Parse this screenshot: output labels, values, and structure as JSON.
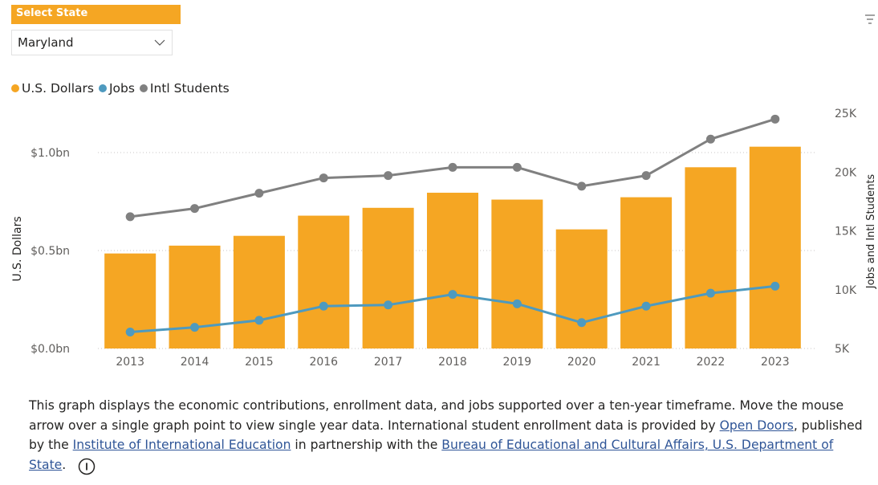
{
  "filter": {
    "header": "Select State",
    "selected": "Maryland"
  },
  "icons": {
    "dropdown": "chevron-down-icon",
    "filter": "filter-lines-icon",
    "info": "info-circle-icon"
  },
  "colors": {
    "accent": "#F5A623",
    "usd": "#F5A623",
    "jobs": "#4E9ABF",
    "students": "#808080",
    "link": "#2f5597"
  },
  "chart_data": {
    "type": "bar",
    "categories": [
      "2013",
      "2014",
      "2015",
      "2016",
      "2017",
      "2018",
      "2019",
      "2020",
      "2021",
      "2022",
      "2023"
    ],
    "series": [
      {
        "name": "U.S. Dollars",
        "type": "bar",
        "axis": "left",
        "values": [
          0.485,
          0.525,
          0.575,
          0.678,
          0.718,
          0.795,
          0.76,
          0.608,
          0.772,
          0.925,
          1.03
        ]
      },
      {
        "name": "Jobs",
        "type": "line",
        "axis": "right",
        "values": [
          6400,
          6800,
          7400,
          8600,
          8700,
          9600,
          8800,
          7200,
          8600,
          9700,
          10300
        ]
      },
      {
        "name": "Intl Students",
        "type": "line",
        "axis": "right",
        "values": [
          16200,
          16900,
          18200,
          19500,
          19700,
          20400,
          20400,
          18800,
          19700,
          22800,
          24500
        ]
      }
    ],
    "left_axis": {
      "label": "U.S. Dollars",
      "min": 0,
      "max": 1.0,
      "ticks": [
        0,
        0.5,
        1.0
      ],
      "tick_labels": [
        "$0.0bn",
        "$0.5bn",
        "$1.0bn"
      ]
    },
    "right_axis": {
      "label": "Jobs and Intl Students",
      "min": 5000,
      "max": 25000,
      "ticks": [
        5000,
        10000,
        15000,
        20000,
        25000
      ],
      "tick_labels": [
        "5K",
        "10K",
        "15K",
        "20K",
        "25K"
      ]
    },
    "legend_position": "top-left",
    "grid": true
  },
  "description": {
    "p1": "This graph displays the economic contributions, enrollment data, and jobs supported over a ten-year timeframe. Move the mouse arrow over a single graph point to view single year data. International student enrollment data is provided by ",
    "link1": "Open Doors",
    "p2": ", published by the ",
    "link2": "Institute of International Education",
    "p3": " in partnership with the ",
    "link3": "Bureau of Educational and Cultural Affairs, U.S. Department of State",
    "p4": "."
  }
}
